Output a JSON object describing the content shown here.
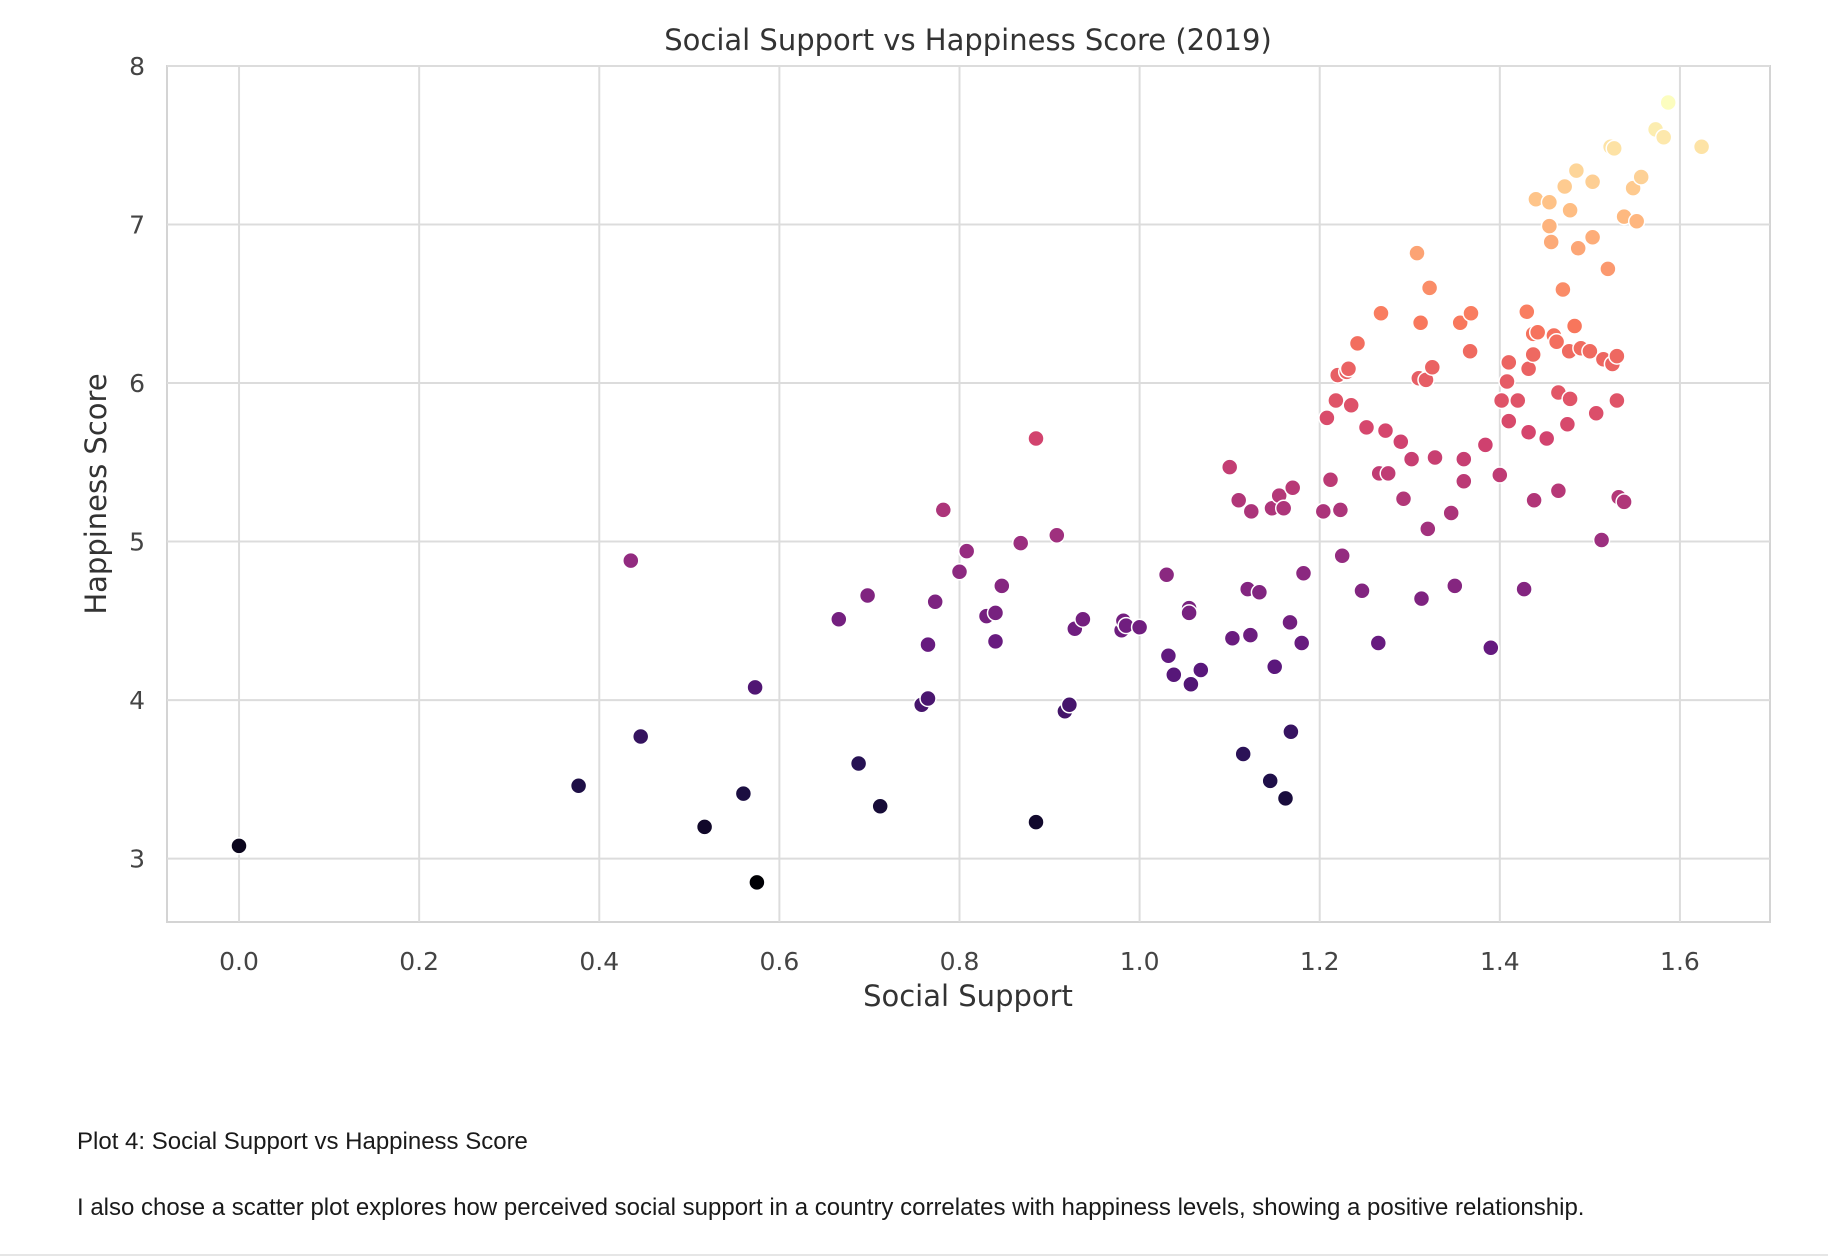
{
  "chart_data": {
    "type": "scatter",
    "title": "Social Support vs Happiness Score (2019)",
    "xlabel": "Social Support",
    "ylabel": "Happiness Score",
    "xlim": [
      -0.08,
      1.7
    ],
    "ylim": [
      2.6,
      8.0
    ],
    "xticks": [
      "0.0",
      "0.2",
      "0.4",
      "0.6",
      "0.8",
      "1.0",
      "1.2",
      "1.4",
      "1.6"
    ],
    "yticks": [
      "3",
      "4",
      "5",
      "6",
      "7",
      "8"
    ],
    "grid": true,
    "colormap": "magma (by happiness score)",
    "colormap_stops": [
      "#000004",
      "#221150",
      "#5f187f",
      "#982d80",
      "#d3436e",
      "#f8765c",
      "#febb81",
      "#fcfdbf"
    ],
    "points": [
      [
        0.0,
        3.08
      ],
      [
        0.377,
        3.46
      ],
      [
        0.446,
        3.77
      ],
      [
        0.435,
        4.88
      ],
      [
        0.517,
        3.2
      ],
      [
        0.56,
        3.41
      ],
      [
        0.573,
        4.08
      ],
      [
        0.575,
        2.85
      ],
      [
        0.666,
        4.51
      ],
      [
        0.688,
        3.6
      ],
      [
        0.698,
        4.66
      ],
      [
        0.712,
        3.33
      ],
      [
        0.758,
        3.97
      ],
      [
        0.765,
        4.01
      ],
      [
        0.765,
        4.35
      ],
      [
        0.773,
        4.62
      ],
      [
        0.782,
        5.2
      ],
      [
        0.8,
        4.81
      ],
      [
        0.808,
        4.94
      ],
      [
        0.83,
        4.53
      ],
      [
        0.84,
        4.55
      ],
      [
        0.84,
        4.37
      ],
      [
        0.847,
        4.72
      ],
      [
        0.868,
        4.99
      ],
      [
        0.885,
        5.65
      ],
      [
        0.885,
        3.23
      ],
      [
        0.908,
        5.04
      ],
      [
        0.917,
        3.93
      ],
      [
        0.922,
        3.97
      ],
      [
        0.928,
        4.45
      ],
      [
        0.937,
        4.51
      ],
      [
        0.98,
        4.44
      ],
      [
        0.982,
        4.5
      ],
      [
        0.985,
        4.47
      ],
      [
        1.0,
        4.46
      ],
      [
        1.03,
        4.79
      ],
      [
        1.032,
        4.28
      ],
      [
        1.038,
        4.16
      ],
      [
        1.055,
        4.58
      ],
      [
        1.055,
        4.55
      ],
      [
        1.057,
        4.1
      ],
      [
        1.068,
        4.19
      ],
      [
        1.1,
        5.47
      ],
      [
        1.103,
        4.39
      ],
      [
        1.11,
        5.26
      ],
      [
        1.115,
        3.66
      ],
      [
        1.12,
        4.7
      ],
      [
        1.123,
        4.41
      ],
      [
        1.124,
        5.19
      ],
      [
        1.133,
        4.68
      ],
      [
        1.145,
        3.49
      ],
      [
        1.147,
        5.21
      ],
      [
        1.15,
        4.21
      ],
      [
        1.155,
        5.29
      ],
      [
        1.16,
        5.21
      ],
      [
        1.162,
        3.38
      ],
      [
        1.167,
        4.49
      ],
      [
        1.168,
        3.8
      ],
      [
        1.17,
        5.34
      ],
      [
        1.18,
        4.36
      ],
      [
        1.182,
        4.8
      ],
      [
        1.204,
        5.19
      ],
      [
        1.208,
        5.78
      ],
      [
        1.212,
        5.39
      ],
      [
        1.218,
        5.89
      ],
      [
        1.22,
        6.05
      ],
      [
        1.223,
        5.2
      ],
      [
        1.225,
        4.91
      ],
      [
        1.23,
        6.07
      ],
      [
        1.232,
        6.09
      ],
      [
        1.235,
        5.86
      ],
      [
        1.242,
        6.25
      ],
      [
        1.247,
        4.69
      ],
      [
        1.252,
        5.72
      ],
      [
        1.265,
        4.36
      ],
      [
        1.266,
        5.43
      ],
      [
        1.268,
        6.44
      ],
      [
        1.273,
        5.7
      ],
      [
        1.276,
        5.43
      ],
      [
        1.29,
        5.63
      ],
      [
        1.293,
        5.27
      ],
      [
        1.302,
        5.52
      ],
      [
        1.308,
        6.82
      ],
      [
        1.31,
        6.03
      ],
      [
        1.312,
        6.38
      ],
      [
        1.313,
        4.64
      ],
      [
        1.318,
        6.02
      ],
      [
        1.32,
        5.08
      ],
      [
        1.322,
        6.6
      ],
      [
        1.325,
        6.1
      ],
      [
        1.328,
        5.53
      ],
      [
        1.346,
        5.18
      ],
      [
        1.35,
        4.72
      ],
      [
        1.356,
        6.38
      ],
      [
        1.36,
        5.38
      ],
      [
        1.36,
        5.52
      ],
      [
        1.367,
        6.2
      ],
      [
        1.368,
        6.44
      ],
      [
        1.384,
        5.61
      ],
      [
        1.39,
        4.33
      ],
      [
        1.4,
        5.42
      ],
      [
        1.402,
        5.89
      ],
      [
        1.408,
        6.01
      ],
      [
        1.41,
        5.76
      ],
      [
        1.41,
        6.13
      ],
      [
        1.42,
        5.89
      ],
      [
        1.427,
        4.7
      ],
      [
        1.43,
        6.45
      ],
      [
        1.432,
        5.69
      ],
      [
        1.432,
        6.09
      ],
      [
        1.437,
        6.18
      ],
      [
        1.437,
        6.31
      ],
      [
        1.438,
        5.26
      ],
      [
        1.44,
        7.16
      ],
      [
        1.442,
        6.32
      ],
      [
        1.452,
        5.65
      ],
      [
        1.455,
        6.99
      ],
      [
        1.455,
        7.14
      ],
      [
        1.457,
        6.89
      ],
      [
        1.46,
        6.3
      ],
      [
        1.463,
        6.26
      ],
      [
        1.465,
        5.94
      ],
      [
        1.465,
        5.32
      ],
      [
        1.47,
        6.59
      ],
      [
        1.472,
        7.24
      ],
      [
        1.475,
        5.74
      ],
      [
        1.477,
        6.2
      ],
      [
        1.478,
        5.9
      ],
      [
        1.478,
        7.09
      ],
      [
        1.483,
        6.36
      ],
      [
        1.485,
        7.34
      ],
      [
        1.487,
        6.85
      ],
      [
        1.49,
        6.22
      ],
      [
        1.5,
        6.2
      ],
      [
        1.503,
        7.27
      ],
      [
        1.503,
        6.92
      ],
      [
        1.507,
        5.81
      ],
      [
        1.513,
        5.01
      ],
      [
        1.515,
        6.15
      ],
      [
        1.52,
        6.72
      ],
      [
        1.523,
        7.49
      ],
      [
        1.525,
        6.12
      ],
      [
        1.527,
        7.48
      ],
      [
        1.53,
        5.89
      ],
      [
        1.53,
        6.17
      ],
      [
        1.532,
        5.28
      ],
      [
        1.538,
        5.25
      ],
      [
        1.538,
        7.05
      ],
      [
        1.548,
        7.23
      ],
      [
        1.552,
        7.02
      ],
      [
        1.557,
        7.3
      ],
      [
        1.573,
        7.6
      ],
      [
        1.582,
        7.55
      ],
      [
        1.587,
        7.77
      ],
      [
        1.624,
        7.49
      ]
    ]
  },
  "caption": {
    "title": "Plot 4: Social Support vs Happiness Score",
    "body": "I also chose a scatter plot explores how perceived social support in a country correlates with happiness levels, showing a positive relationship."
  }
}
